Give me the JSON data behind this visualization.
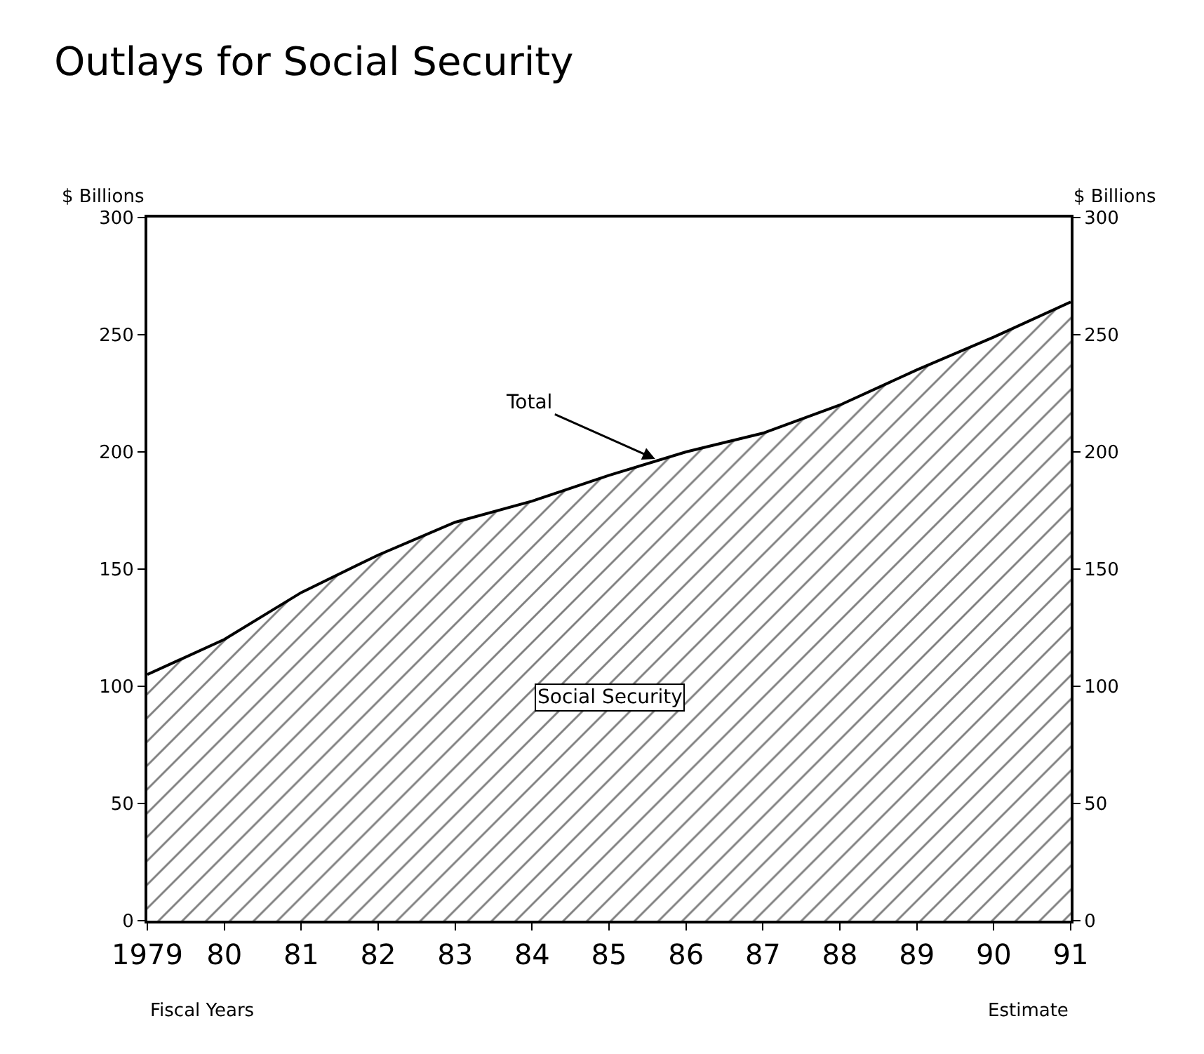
{
  "chart_data": {
    "type": "area",
    "title": "Outlays for Social Security",
    "ylabel": "$ Billions",
    "y2label": "$ Billions",
    "x": [
      1979,
      1980,
      1981,
      1982,
      1983,
      1984,
      1985,
      1986,
      1987,
      1988,
      1989,
      1990,
      1991
    ],
    "series": [
      {
        "name": "Social Security",
        "color": "#000000",
        "values": [
          105,
          120,
          140,
          156,
          170,
          179,
          190,
          200,
          208,
          220,
          235,
          249,
          264
        ]
      }
    ],
    "xlim": [
      1979,
      1991
    ],
    "xticks": [
      {
        "value": 1979,
        "label": "1979"
      },
      {
        "value": 1980,
        "label": "80"
      },
      {
        "value": 1981,
        "label": "81"
      },
      {
        "value": 1982,
        "label": "82"
      },
      {
        "value": 1983,
        "label": "83"
      },
      {
        "value": 1984,
        "label": "84"
      },
      {
        "value": 1985,
        "label": "85"
      },
      {
        "value": 1986,
        "label": "86"
      },
      {
        "value": 1987,
        "label": "87"
      },
      {
        "value": 1988,
        "label": "88"
      },
      {
        "value": 1989,
        "label": "89"
      },
      {
        "value": 1990,
        "label": "90"
      },
      {
        "value": 1991,
        "label": "91"
      }
    ],
    "ylim": [
      0,
      300
    ],
    "yticks": [
      0,
      50,
      100,
      150,
      200,
      250,
      300
    ],
    "y2lim": [
      0,
      300
    ],
    "y2ticks": [
      0,
      50,
      100,
      150,
      200,
      250,
      300
    ],
    "legend": false,
    "annotations": [
      {
        "text": "Total",
        "x": 1985.6,
        "y": 197
      },
      "Fiscal Years",
      "Estimate"
    ]
  }
}
